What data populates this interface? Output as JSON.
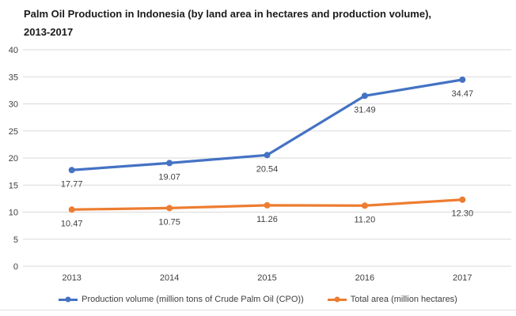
{
  "title": {
    "lines": [
      "Palm Oil Production in Indonesia (by land area in hectares and production volume),",
      "2013-2017"
    ]
  },
  "chart_data": {
    "type": "line",
    "categories": [
      "2013",
      "2014",
      "2015",
      "2016",
      "2017"
    ],
    "series": [
      {
        "name": "Production volume (million tons of Crude Palm Oil (CPO))",
        "values": [
          17.77,
          19.07,
          20.54,
          31.49,
          34.47
        ],
        "labels": [
          "17.77",
          "19.07",
          "20.54",
          "31.49",
          "34.47"
        ],
        "color": "#4472C4"
      },
      {
        "name": "Total area (million hectares)",
        "values": [
          10.47,
          10.75,
          11.26,
          11.2,
          12.3
        ],
        "labels": [
          "10.47",
          "10.75",
          "11.26",
          "11.20",
          "12.30"
        ],
        "color": "#ED7D31"
      }
    ],
    "ylim": [
      0,
      40
    ],
    "yticks": [
      0,
      5,
      10,
      15,
      20,
      25,
      30,
      35,
      40
    ],
    "grid": "horizontal",
    "legend_position": "bottom",
    "gridline_color": "#D9D9D9",
    "axis_text_color": "#404040",
    "data_label_color": "#404040"
  }
}
